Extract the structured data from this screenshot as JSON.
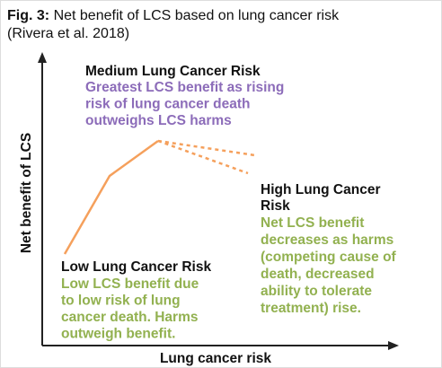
{
  "title": {
    "label": "Fig. 3:",
    "text": "Net benefit of LCS based on lung cancer risk",
    "subtitle": "(Rivera et al. 2018)"
  },
  "axes": {
    "y_label": "Net benefit of LCS",
    "x_label": "Lung cancer risk"
  },
  "medium": {
    "heading": "Medium Lung Cancer Risk",
    "body": [
      "Greatest LCS benefit as rising",
      "risk of lung cancer death",
      "outweighs LCS harms"
    ]
  },
  "high": {
    "heading": [
      "High Lung Cancer",
      "Risk"
    ],
    "body": [
      "Net LCS benefit",
      "decreases as harms",
      "(competing cause of",
      "death, decreased",
      "ability to tolerate",
      "treatment) rise."
    ]
  },
  "low": {
    "heading": "Low Lung Cancer Risk",
    "body": [
      "Low LCS benefit due",
      "to low risk of lung",
      "cancer death. Harms",
      "outweigh benefit."
    ]
  }
}
